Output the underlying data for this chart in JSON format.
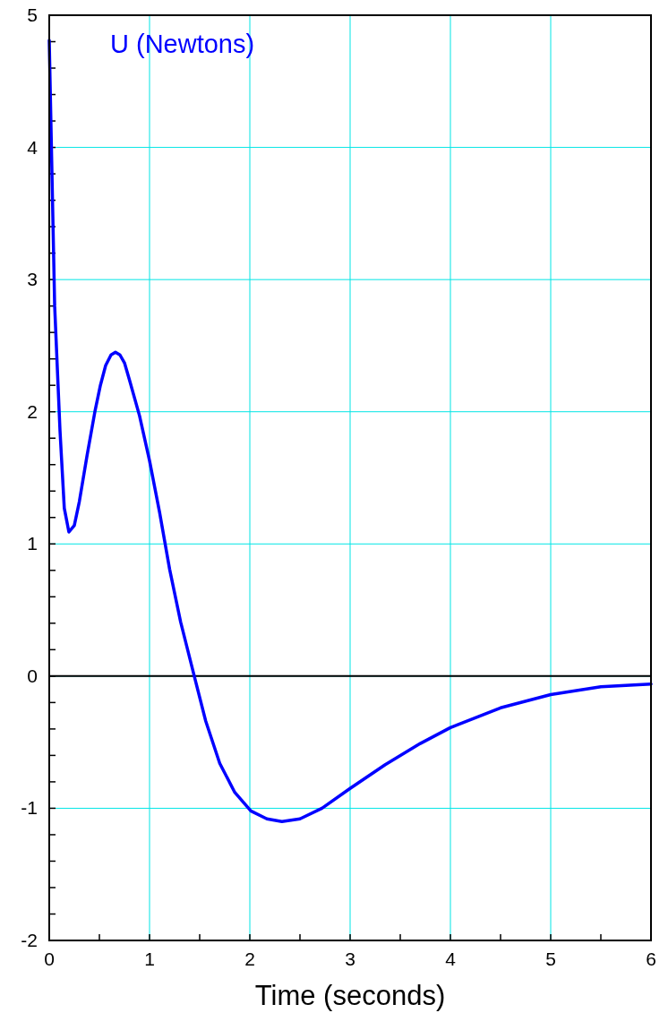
{
  "chart_data": {
    "type": "line",
    "xlabel": "Time (seconds)",
    "xlim": [
      0,
      6
    ],
    "xticks": [
      0,
      {
        "value": 0.5,
        "label": null
      },
      1,
      {
        "value": 1.5,
        "label": null
      },
      2,
      {
        "value": 2.5,
        "label": null
      },
      3,
      {
        "value": 3.5,
        "label": null
      },
      4,
      {
        "value": 4.5,
        "label": null
      },
      5,
      {
        "value": 5.5,
        "label": null
      },
      6
    ],
    "ylim": [
      -2,
      5
    ],
    "yticks": [
      -2,
      {
        "value": -1.8,
        "label": null
      },
      {
        "value": -1.6,
        "label": null
      },
      {
        "value": -1.4,
        "label": null
      },
      {
        "value": -1.2,
        "label": null
      },
      -1,
      {
        "value": -0.8,
        "label": null
      },
      {
        "value": -0.6,
        "label": null
      },
      {
        "value": -0.4,
        "label": null
      },
      {
        "value": -0.2,
        "label": null
      },
      0,
      {
        "value": 0.2,
        "label": null
      },
      {
        "value": 0.4,
        "label": null
      },
      {
        "value": 0.6,
        "label": null
      },
      {
        "value": 0.8,
        "label": null
      },
      1,
      {
        "value": 1.2,
        "label": null
      },
      {
        "value": 1.4,
        "label": null
      },
      {
        "value": 1.6,
        "label": null
      },
      {
        "value": 1.8,
        "label": null
      },
      2,
      {
        "value": 2.2,
        "label": null
      },
      {
        "value": 2.4,
        "label": null
      },
      {
        "value": 2.6,
        "label": null
      },
      {
        "value": 2.8,
        "label": null
      },
      3,
      {
        "value": 3.2,
        "label": null
      },
      {
        "value": 3.4,
        "label": null
      },
      {
        "value": 3.6,
        "label": null
      },
      {
        "value": 3.8,
        "label": null
      },
      4,
      {
        "value": 4.2,
        "label": null
      },
      {
        "value": 4.4,
        "label": null
      },
      {
        "value": 4.6,
        "label": null
      },
      {
        "value": 4.8,
        "label": null
      },
      5
    ],
    "grid": true,
    "legend": false,
    "marker": "none",
    "line_style": "solid",
    "ref_lines": [
      {
        "axis": "y",
        "value": 0,
        "color": "#000000"
      }
    ],
    "series": [
      {
        "name": "U (Newtons)",
        "color": "#0000ff",
        "x": [
          0,
          0.054,
          0.107,
          0.15,
          0.196,
          0.25,
          0.3,
          0.375,
          0.455,
          0.51,
          0.5625,
          0.616,
          0.66,
          0.705,
          0.75,
          0.8,
          0.9,
          1.0,
          1.1,
          1.2,
          1.31,
          1.446,
          1.56,
          1.7,
          1.85,
          2.01,
          2.17,
          2.32,
          2.5,
          2.72,
          3.0,
          3.35,
          3.7,
          4.0,
          4.5,
          5.0,
          5.5,
          6.0
        ],
        "values": [
          4.81,
          2.8,
          1.86,
          1.27,
          1.09,
          1.14,
          1.32,
          1.66,
          2.0,
          2.2,
          2.35,
          2.43,
          2.45,
          2.43,
          2.37,
          2.24,
          1.97,
          1.63,
          1.24,
          0.81,
          0.41,
          0,
          -0.34,
          -0.66,
          -0.88,
          -1.02,
          -1.08,
          -1.1,
          -1.08,
          -1.0,
          -0.85,
          -0.67,
          -0.51,
          -0.39,
          -0.24,
          -0.14,
          -0.08,
          -0.06
        ]
      }
    ]
  }
}
